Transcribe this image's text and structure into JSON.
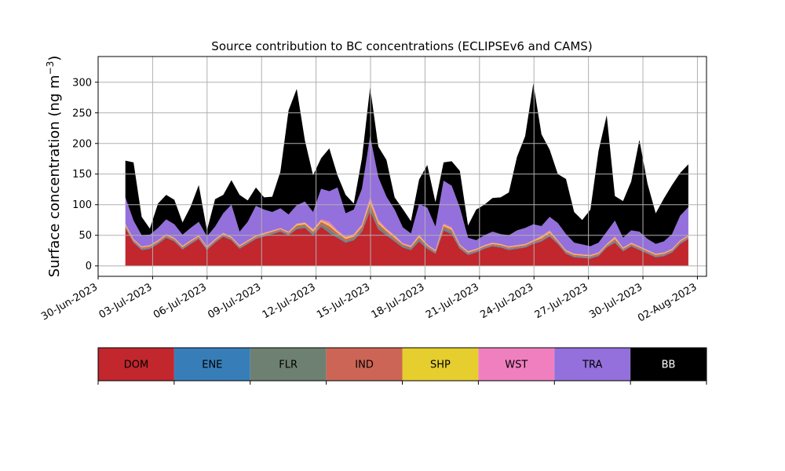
{
  "chart_data": {
    "type": "area",
    "title": "Source contribution to BC concentrations (ECLIPSEv6 and CAMS)",
    "ylabel_main": "Surface concentration (ng m",
    "ylabel_sup": "−3",
    "ylabel_close": ")",
    "xlabel": "",
    "stacked": true,
    "grid": true,
    "ylim": [
      -17,
      342
    ],
    "xlim": [
      "2023-06-30T00:00",
      "2023-08-02T12:00"
    ],
    "yticks": [
      0,
      50,
      100,
      150,
      200,
      250,
      300
    ],
    "xticks": [
      "30-Jun-2023",
      "03-Jul-2023",
      "06-Jul-2023",
      "09-Jul-2023",
      "12-Jul-2023",
      "15-Jul-2023",
      "18-Jul-2023",
      "21-Jul-2023",
      "24-Jul-2023",
      "27-Jul-2023",
      "30-Jul-2023",
      "02-Aug-2023"
    ],
    "x_start": "2023-07-01T12:00",
    "x_end": "2023-08-01T12:00",
    "series": [
      {
        "name": "DOM",
        "color": "#c1272d",
        "values": [
          62,
          38,
          26,
          28,
          36,
          46,
          40,
          27,
          36,
          44,
          26,
          38,
          48,
          42,
          28,
          36,
          44,
          48,
          52,
          56,
          50,
          60,
          62,
          50,
          64,
          54,
          46,
          38,
          42,
          56,
          90,
          60,
          50,
          40,
          30,
          26,
          40,
          28,
          20,
          58,
          52,
          28,
          18,
          22,
          28,
          32,
          30,
          26,
          28,
          30,
          36,
          40,
          48,
          36,
          20,
          14,
          13,
          12,
          16,
          30,
          38,
          24,
          32,
          26,
          20,
          14,
          16,
          22,
          36,
          44
        ]
      },
      {
        "name": "ENE",
        "color": "#377eb8",
        "values": [
          1,
          1,
          1,
          1,
          1,
          1,
          1,
          1,
          1,
          1,
          1,
          1,
          1,
          1,
          1,
          1,
          1,
          1,
          1,
          1,
          1,
          1,
          1,
          1,
          1,
          1,
          1,
          1,
          1,
          1,
          1,
          1,
          1,
          1,
          1,
          1,
          1,
          1,
          1,
          1,
          1,
          1,
          1,
          1,
          1,
          1,
          1,
          1,
          1,
          1,
          1,
          1,
          1,
          1,
          1,
          1,
          1,
          1,
          1,
          1,
          1,
          1,
          1,
          1,
          1,
          1,
          1,
          1,
          1,
          1
        ]
      },
      {
        "name": "FLR",
        "color": "#6e8072",
        "values": [
          1,
          1,
          1,
          1,
          1,
          1,
          1,
          1,
          1,
          1,
          1,
          1,
          1,
          1,
          1,
          1,
          1,
          1,
          1,
          1,
          1,
          2,
          2,
          2,
          3,
          5,
          3,
          2,
          2,
          3,
          6,
          4,
          3,
          2,
          2,
          2,
          3,
          2,
          1,
          3,
          3,
          2,
          1,
          1,
          1,
          1,
          1,
          1,
          1,
          1,
          1,
          1,
          2,
          1,
          1,
          1,
          1,
          1,
          1,
          1,
          2,
          1,
          1,
          1,
          1,
          1,
          1,
          1,
          1,
          1
        ]
      },
      {
        "name": "IND",
        "color": "#cd6556",
        "values": [
          2,
          2,
          2,
          2,
          2,
          2,
          2,
          2,
          2,
          2,
          2,
          2,
          2,
          2,
          2,
          2,
          2,
          2,
          2,
          2,
          2,
          3,
          3,
          3,
          4,
          5,
          4,
          3,
          3,
          4,
          6,
          4,
          3,
          3,
          2,
          2,
          3,
          2,
          2,
          3,
          3,
          2,
          2,
          2,
          2,
          2,
          2,
          2,
          2,
          2,
          2,
          3,
          3,
          2,
          2,
          2,
          2,
          2,
          2,
          2,
          3,
          2,
          2,
          2,
          2,
          2,
          2,
          2,
          2,
          2
        ]
      },
      {
        "name": "SHP",
        "color": "#e5ce2e",
        "values": [
          2,
          1,
          1,
          1,
          1,
          1,
          1,
          1,
          1,
          1,
          1,
          1,
          1,
          1,
          1,
          1,
          1,
          1,
          1,
          1,
          1,
          2,
          2,
          2,
          2,
          3,
          2,
          2,
          2,
          2,
          4,
          3,
          2,
          2,
          1,
          1,
          2,
          1,
          1,
          2,
          2,
          1,
          1,
          1,
          1,
          1,
          1,
          1,
          1,
          1,
          1,
          2,
          2,
          1,
          1,
          1,
          1,
          1,
          1,
          1,
          2,
          1,
          1,
          1,
          1,
          1,
          1,
          1,
          1,
          1
        ]
      },
      {
        "name": "WST",
        "color": "#f07fbf",
        "values": [
          1,
          1,
          1,
          1,
          1,
          1,
          1,
          1,
          1,
          1,
          1,
          1,
          1,
          1,
          1,
          1,
          1,
          1,
          1,
          1,
          1,
          1,
          1,
          2,
          2,
          4,
          2,
          2,
          2,
          2,
          5,
          3,
          2,
          2,
          1,
          1,
          2,
          1,
          1,
          2,
          2,
          1,
          1,
          1,
          1,
          1,
          1,
          1,
          1,
          1,
          1,
          2,
          2,
          1,
          1,
          1,
          1,
          1,
          1,
          1,
          2,
          1,
          1,
          1,
          1,
          1,
          1,
          1,
          1,
          1
        ]
      },
      {
        "name": "TRA",
        "color": "#9370db",
        "values": [
          43,
          30,
          18,
          17,
          20,
          24,
          22,
          18,
          20,
          22,
          16,
          20,
          32,
          52,
          22,
          30,
          48,
          38,
          30,
          32,
          28,
          30,
          34,
          28,
          50,
          50,
          70,
          38,
          40,
          58,
          100,
          70,
          52,
          42,
          26,
          20,
          50,
          60,
          38,
          70,
          68,
          60,
          22,
          14,
          16,
          18,
          16,
          18,
          24,
          26,
          26,
          16,
          22,
          28,
          26,
          18,
          16,
          14,
          16,
          20,
          26,
          16,
          20,
          24,
          18,
          16,
          18,
          24,
          40,
          46
        ]
      },
      {
        "name": "BB",
        "color": "#000000",
        "values": [
          60,
          95,
          30,
          10,
          40,
          40,
          40,
          20,
          35,
          60,
          10,
          45,
          30,
          40,
          60,
          35,
          30,
          20,
          25,
          60,
          170,
          190,
          100,
          60,
          50,
          70,
          20,
          30,
          10,
          50,
          80,
          50,
          60,
          20,
          30,
          20,
          40,
          70,
          40,
          30,
          40,
          60,
          20,
          50,
          50,
          55,
          60,
          70,
          120,
          150,
          230,
          150,
          110,
          80,
          90,
          50,
          40,
          60,
          150,
          190,
          40,
          60,
          80,
          150,
          90,
          50,
          70,
          80,
          70,
          70
        ]
      }
    ],
    "legend_placement": "bottom"
  }
}
